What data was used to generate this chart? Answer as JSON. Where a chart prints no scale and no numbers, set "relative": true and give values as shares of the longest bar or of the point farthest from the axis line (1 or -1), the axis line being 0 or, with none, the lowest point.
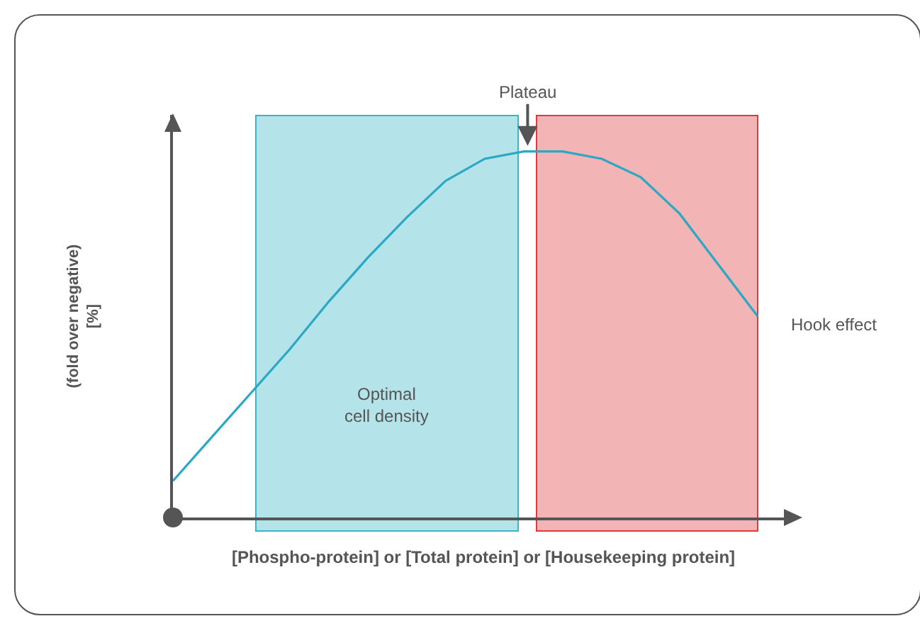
{
  "chart_data": {
    "type": "line",
    "relative": true,
    "xlabel": "[Phospho-protein] or [Total protein] or [Housekeeping protein]",
    "ylabel": "(fold over negative)\n[%]",
    "categories": [
      null,
      null,
      null,
      null,
      null,
      null,
      null,
      null,
      null,
      null,
      null,
      null,
      null,
      null,
      null,
      null
    ],
    "series": [
      {
        "color": "#2aa8c4",
        "values": [
          0.1,
          0.22,
          0.34,
          0.46,
          0.59,
          0.71,
          0.82,
          0.92,
          0.98,
          1,
          1,
          0.98,
          0.93,
          0.83,
          0.69,
          0.55
        ]
      }
    ],
    "annotations": [
      "Optimal cell density",
      "Plateau",
      "Hook effect"
    ],
    "marker": "none",
    "line_style": "solid"
  }
}
